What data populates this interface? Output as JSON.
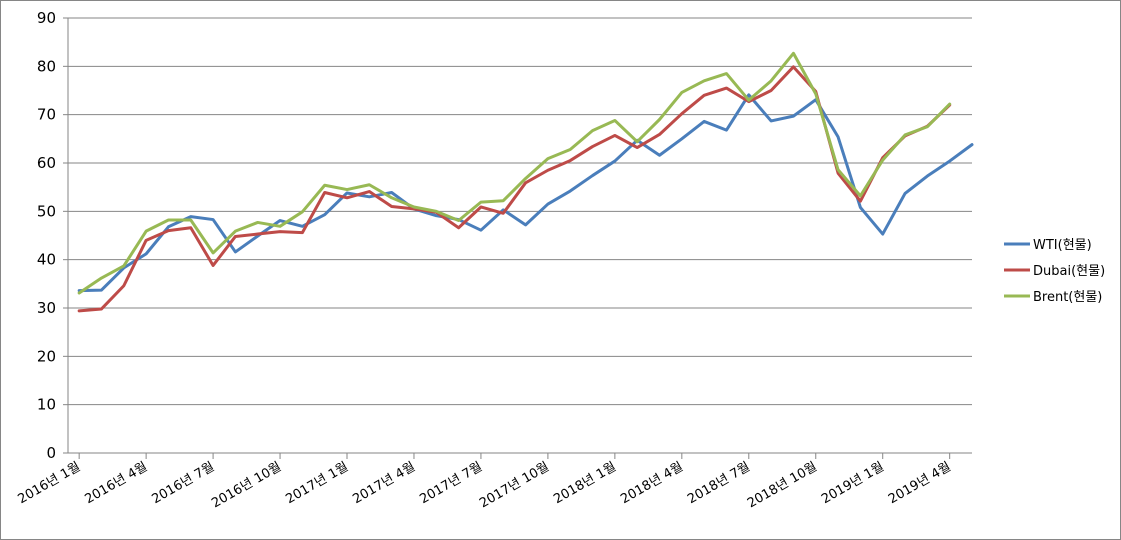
{
  "chart_data": {
    "type": "line",
    "title": "",
    "xlabel": "",
    "ylabel": "",
    "ylim": [
      0,
      90
    ],
    "yticks": [
      0,
      10,
      20,
      30,
      40,
      50,
      60,
      70,
      80,
      90
    ],
    "grid": "horizontal",
    "legend_position": "right",
    "x": [
      "2016-01",
      "2016-02",
      "2016-03",
      "2016-04",
      "2016-05",
      "2016-06",
      "2016-07",
      "2016-08",
      "2016-09",
      "2016-10",
      "2016-11",
      "2016-12",
      "2017-01",
      "2017-02",
      "2017-03",
      "2017-04",
      "2017-05",
      "2017-06",
      "2017-07",
      "2017-08",
      "2017-09",
      "2017-10",
      "2017-11",
      "2017-12",
      "2018-01",
      "2018-02",
      "2018-03",
      "2018-04",
      "2018-05",
      "2018-06",
      "2018-07",
      "2018-08",
      "2018-09",
      "2018-10",
      "2018-11",
      "2018-12",
      "2019-01",
      "2019-02",
      "2019-03",
      "2019-04",
      "2019-05"
    ],
    "xtick_labels": [
      {
        "index": 0,
        "label": "2016년 1월"
      },
      {
        "index": 3,
        "label": "2016년 4월"
      },
      {
        "index": 6,
        "label": "2016년 7월"
      },
      {
        "index": 9,
        "label": "2016년 10월"
      },
      {
        "index": 12,
        "label": "2017년 1월"
      },
      {
        "index": 15,
        "label": "2017년 4월"
      },
      {
        "index": 18,
        "label": "2017년 7월"
      },
      {
        "index": 21,
        "label": "2017년 10월"
      },
      {
        "index": 24,
        "label": "2018년 1월"
      },
      {
        "index": 27,
        "label": "2018년 4월"
      },
      {
        "index": 30,
        "label": "2018년 7월"
      },
      {
        "index": 33,
        "label": "2018년 10월"
      },
      {
        "index": 36,
        "label": "2019년 1월"
      },
      {
        "index": 39,
        "label": "2019년 4월"
      }
    ],
    "series": [
      {
        "name": "WTI(현물)",
        "color": "#4a7ebb",
        "values": [
          33.6,
          33.7,
          38.3,
          41.2,
          46.8,
          48.9,
          48.3,
          41.6,
          44.9,
          48.1,
          46.9,
          49.3,
          53.8,
          53.0,
          53.9,
          50.5,
          49.1,
          48.3,
          46.1,
          50.3,
          47.2,
          51.5,
          54.2,
          57.4,
          60.4,
          64.7,
          61.6,
          65.0,
          68.6,
          66.8,
          74.1,
          68.7,
          69.7,
          73.1,
          65.4,
          50.8,
          45.3,
          53.7,
          57.3,
          60.4,
          63.8
        ]
      },
      {
        "name": "Dubai(현물)",
        "color": "#be4b48",
        "values": [
          29.4,
          29.8,
          34.6,
          44.0,
          46.0,
          46.6,
          38.8,
          44.8,
          45.3,
          45.8,
          45.6,
          53.9,
          52.8,
          54.1,
          51.0,
          50.5,
          49.8,
          46.6,
          50.9,
          49.6,
          55.9,
          58.5,
          60.5,
          63.4,
          65.7,
          63.2,
          65.9,
          70.2,
          74.0,
          75.5,
          72.7,
          75.0,
          79.9,
          74.8,
          57.9,
          52.1,
          61.1,
          65.6,
          67.6,
          72.0,
          null
        ]
      },
      {
        "name": "Brent(현물)",
        "color": "#98b954",
        "values": [
          33.1,
          36.2,
          38.7,
          45.9,
          48.2,
          48.2,
          41.4,
          45.9,
          47.7,
          46.9,
          49.9,
          55.4,
          54.5,
          55.5,
          52.8,
          50.9,
          50.0,
          48.1,
          51.9,
          52.2,
          56.8,
          60.9,
          62.8,
          66.7,
          68.8,
          64.4,
          69.0,
          74.6,
          77.0,
          78.5,
          73.0,
          77.0,
          82.7,
          74.3,
          58.6,
          53.2,
          60.6,
          65.8,
          67.5,
          72.2,
          null
        ]
      }
    ]
  }
}
